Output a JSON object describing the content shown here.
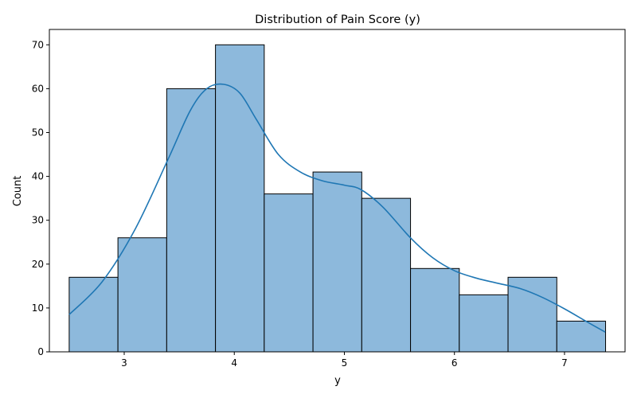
{
  "chart_data": {
    "type": "histogram",
    "title": "Distribution of Pain Score (y)",
    "xlabel": "y",
    "ylabel": "Count",
    "bin_edges": [
      2.5,
      2.943,
      3.386,
      3.829,
      4.272,
      4.715,
      5.158,
      5.601,
      6.044,
      6.487,
      6.93,
      7.373
    ],
    "counts": [
      17,
      26,
      60,
      70,
      36,
      41,
      35,
      19,
      13,
      17,
      7
    ],
    "xlim": [
      2.32,
      7.55
    ],
    "ylim": [
      0,
      73.5
    ],
    "xticks": [
      3,
      4,
      5,
      6,
      7
    ],
    "yticks": [
      0,
      10,
      20,
      30,
      40,
      50,
      60,
      70
    ],
    "kde": {
      "x": [
        2.5,
        2.8,
        3.1,
        3.4,
        3.6,
        3.75,
        3.9,
        4.05,
        4.2,
        4.4,
        4.6,
        4.8,
        5.0,
        5.15,
        5.35,
        5.6,
        5.8,
        6.0,
        6.2,
        6.4,
        6.6,
        6.8,
        7.0,
        7.2,
        7.37
      ],
      "y": [
        8.5,
        16,
        28,
        44,
        55,
        60,
        61,
        59,
        53,
        45,
        41,
        39,
        38,
        37,
        33,
        26,
        21.5,
        18.5,
        16.8,
        15.6,
        14.4,
        12.4,
        9.8,
        6.9,
        4.5
      ]
    },
    "grid": false,
    "legend": "none",
    "colors": {
      "bar_fill": "#8db9dc",
      "bar_edge": "#000000",
      "kde_line": "#1f77b4"
    }
  }
}
